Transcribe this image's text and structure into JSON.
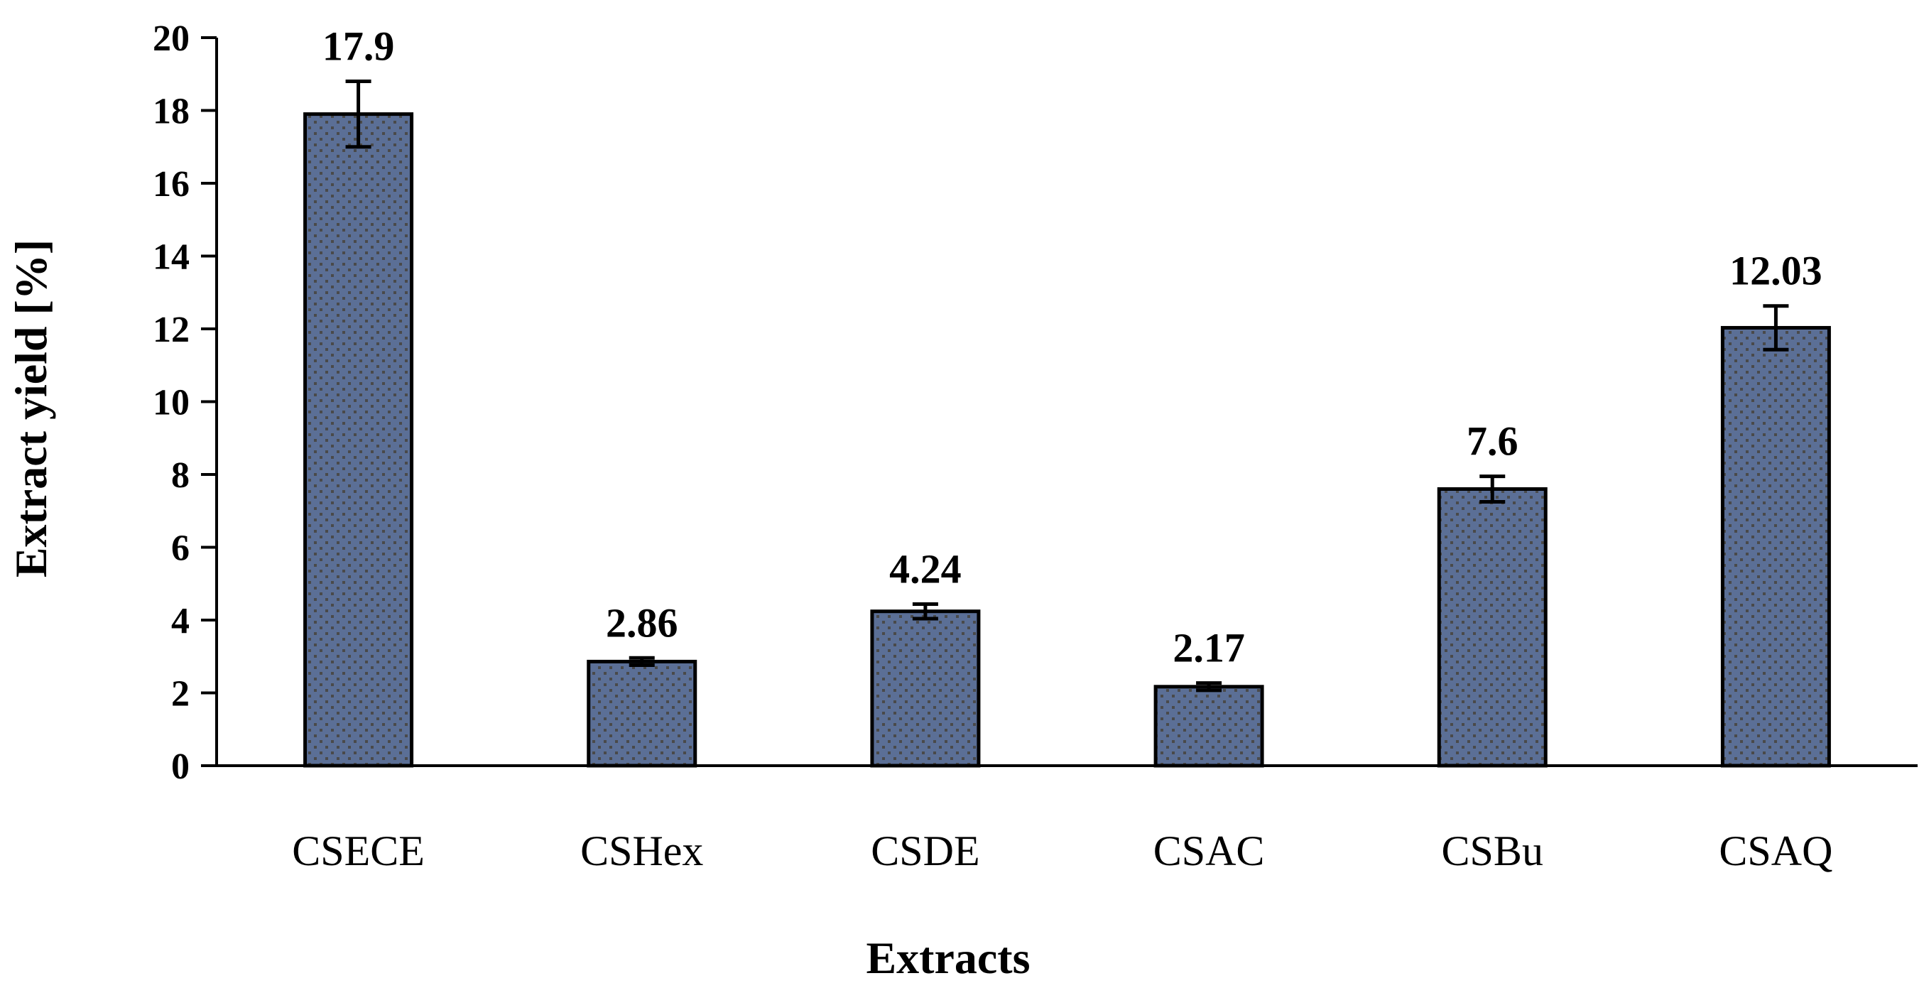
{
  "chart_data": {
    "type": "bar",
    "title": "",
    "xlabel": "Extracts",
    "ylabel": "Extract yield [%]",
    "categories": [
      "CSECE",
      "CSHex",
      "CSDE",
      "CSAC",
      "CSBu",
      "CSAQ"
    ],
    "values": [
      17.9,
      2.86,
      4.24,
      2.17,
      7.6,
      12.03
    ],
    "data_labels": [
      "17.9",
      "2.86",
      "4.24",
      "2.17",
      "7.6",
      "12.03"
    ],
    "error": [
      0.9,
      0.1,
      0.2,
      0.1,
      0.35,
      0.6
    ],
    "ylim": [
      0,
      20
    ],
    "yticks": [
      0,
      2,
      4,
      6,
      8,
      10,
      12,
      14,
      16,
      18,
      20
    ],
    "grid": false,
    "legend": "none",
    "colors": {
      "bar_fill": "#5b6f96",
      "bar_dot": "#4a4a4a",
      "outline": "#000000"
    }
  }
}
